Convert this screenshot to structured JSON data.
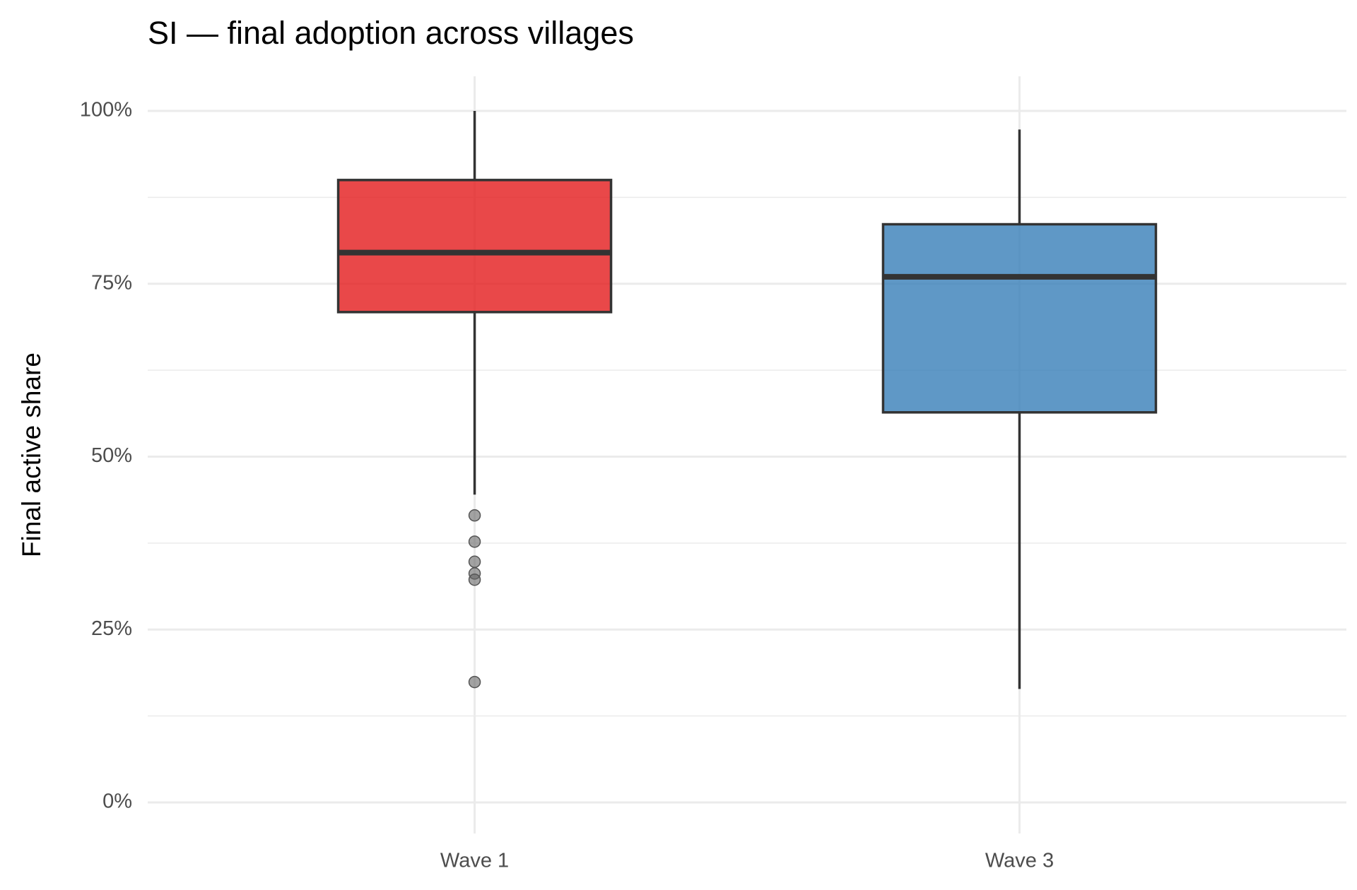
{
  "chart_data": {
    "type": "box",
    "title": "SI — final adoption across villages",
    "y_label": "Final active share",
    "categories": [
      "Wave 1",
      "Wave 3"
    ],
    "boxes": [
      {
        "whisker_low": 44.5,
        "q1": 70.9,
        "median": 79.5,
        "q3": 90,
        "whisker_high": 100,
        "outliers": [
          41.5,
          37.7,
          34.8,
          33.1,
          32.2,
          17.4
        ],
        "color": "#e41a1c"
      },
      {
        "whisker_low": 16.4,
        "q1": 56.4,
        "median": 76,
        "q3": 83.6,
        "whisker_high": 97.3,
        "outliers": [],
        "color": "#377eb8"
      }
    ],
    "ylim": [
      -4.5,
      105
    ],
    "yticks": [
      {
        "value": 0,
        "label": "0%"
      },
      {
        "value": 25,
        "label": "25%"
      },
      {
        "value": 50,
        "label": "50%"
      },
      {
        "value": 75,
        "label": "75%"
      },
      {
        "value": 100,
        "label": "100%"
      }
    ],
    "minor_yticks": [
      12.5,
      37.5,
      62.5,
      87.5
    ],
    "grid": true
  }
}
